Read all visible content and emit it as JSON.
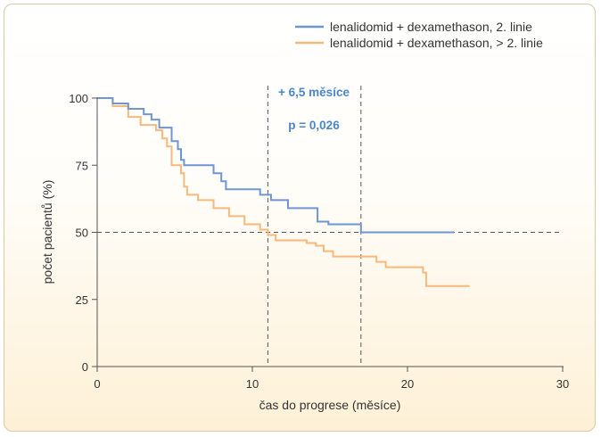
{
  "chart_data": {
    "type": "line",
    "step": true,
    "xlabel": "čas do progrese (měsíce)",
    "ylabel": "počet pacientů (%)",
    "xlim": [
      0,
      30
    ],
    "ylim": [
      0,
      100
    ],
    "xticks": [
      0,
      10,
      20,
      30
    ],
    "yticks": [
      0,
      25,
      50,
      75,
      100
    ],
    "grid": false,
    "legend_position": "top-right",
    "series": [
      {
        "name": "lenalidomid + dexamethason, 2. linie",
        "color": "#6f96d1",
        "points": [
          [
            0,
            100
          ],
          [
            1,
            100
          ],
          [
            1,
            98
          ],
          [
            2,
            98
          ],
          [
            2,
            96
          ],
          [
            3,
            96
          ],
          [
            3,
            94
          ],
          [
            3.5,
            94
          ],
          [
            3.5,
            92
          ],
          [
            4,
            92
          ],
          [
            4,
            89
          ],
          [
            4.8,
            89
          ],
          [
            4.8,
            84
          ],
          [
            5.2,
            84
          ],
          [
            5.2,
            81
          ],
          [
            5.4,
            81
          ],
          [
            5.4,
            77
          ],
          [
            5.6,
            77
          ],
          [
            5.6,
            75
          ],
          [
            7.5,
            75
          ],
          [
            7.5,
            72
          ],
          [
            8,
            72
          ],
          [
            8,
            69
          ],
          [
            8.3,
            69
          ],
          [
            8.3,
            66
          ],
          [
            10.5,
            66
          ],
          [
            10.5,
            64
          ],
          [
            11.2,
            64
          ],
          [
            11.2,
            62
          ],
          [
            12.3,
            62
          ],
          [
            12.3,
            59
          ],
          [
            14.2,
            59
          ],
          [
            14.2,
            54
          ],
          [
            14.9,
            54
          ],
          [
            14.9,
            53
          ],
          [
            17,
            53
          ],
          [
            17,
            50
          ],
          [
            23,
            50
          ]
        ]
      },
      {
        "name": "lenalidomid + dexamethason, > 2. linie",
        "color": "#f7b87c",
        "points": [
          [
            0,
            100
          ],
          [
            1,
            100
          ],
          [
            1,
            97
          ],
          [
            2,
            97
          ],
          [
            2,
            93
          ],
          [
            2.8,
            93
          ],
          [
            2.8,
            90
          ],
          [
            3.8,
            90
          ],
          [
            3.8,
            88
          ],
          [
            4.2,
            88
          ],
          [
            4.2,
            85
          ],
          [
            4.5,
            85
          ],
          [
            4.5,
            82
          ],
          [
            4.8,
            82
          ],
          [
            4.8,
            75
          ],
          [
            5.4,
            75
          ],
          [
            5.4,
            72
          ],
          [
            5.6,
            72
          ],
          [
            5.6,
            67
          ],
          [
            5.8,
            67
          ],
          [
            5.8,
            64
          ],
          [
            6.5,
            64
          ],
          [
            6.5,
            62
          ],
          [
            7.5,
            62
          ],
          [
            7.5,
            59
          ],
          [
            8.5,
            59
          ],
          [
            8.5,
            56
          ],
          [
            9.5,
            56
          ],
          [
            9.5,
            53
          ],
          [
            10.5,
            53
          ],
          [
            10.5,
            51
          ],
          [
            11,
            51
          ],
          [
            11,
            49
          ],
          [
            11.5,
            49
          ],
          [
            11.5,
            47
          ],
          [
            13.5,
            47
          ],
          [
            13.5,
            46
          ],
          [
            14.1,
            46
          ],
          [
            14.1,
            45
          ],
          [
            14.6,
            45
          ],
          [
            14.6,
            43
          ],
          [
            15.2,
            43
          ],
          [
            15.2,
            41
          ],
          [
            18,
            41
          ],
          [
            18,
            39
          ],
          [
            18.6,
            39
          ],
          [
            18.6,
            37
          ],
          [
            21,
            37
          ],
          [
            21,
            35
          ],
          [
            21.2,
            35
          ],
          [
            21.2,
            30
          ],
          [
            24,
            30
          ]
        ]
      }
    ],
    "reference_lines": {
      "horizontal_y": 50,
      "vertical_x": [
        11,
        17
      ],
      "color": "#555555"
    },
    "annotations": [
      {
        "text": "+ 6,5 měsíce",
        "color": "#4a86c8"
      },
      {
        "text": "p = 0,026",
        "color": "#4a86c8"
      }
    ],
    "axis_color": "#555555"
  }
}
